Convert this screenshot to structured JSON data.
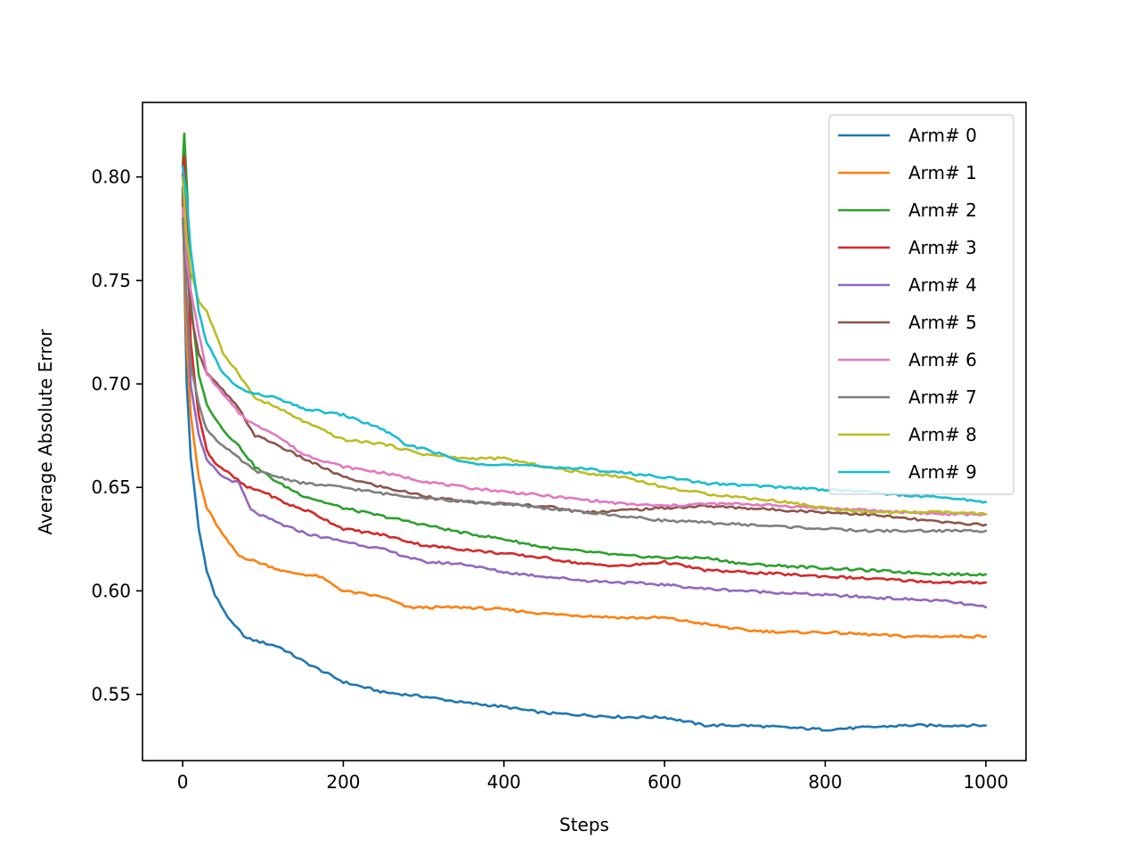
{
  "chart_data": {
    "type": "line",
    "title": "",
    "xlabel": "Steps",
    "ylabel": "Average Absolute Error",
    "xlim": [
      -50,
      1050
    ],
    "ylim": [
      0.518,
      0.836
    ],
    "xticks": [
      0,
      200,
      400,
      600,
      800,
      1000
    ],
    "yticks": [
      0.55,
      0.6,
      0.65,
      0.7,
      0.75,
      0.8
    ],
    "grid": false,
    "legend_position": "top-right",
    "series": [
      {
        "name": "Arm# 0",
        "color": "#1f77b4",
        "points": [
          [
            0,
            0.795
          ],
          [
            5,
            0.7
          ],
          [
            10,
            0.665
          ],
          [
            20,
            0.63
          ],
          [
            30,
            0.61
          ],
          [
            40,
            0.598
          ],
          [
            60,
            0.585
          ],
          [
            80,
            0.577
          ],
          [
            100,
            0.575
          ],
          [
            120,
            0.573
          ],
          [
            150,
            0.566
          ],
          [
            200,
            0.556
          ],
          [
            250,
            0.551
          ],
          [
            300,
            0.549
          ],
          [
            350,
            0.546
          ],
          [
            400,
            0.544
          ],
          [
            450,
            0.541
          ],
          [
            500,
            0.54
          ],
          [
            550,
            0.539
          ],
          [
            600,
            0.539
          ],
          [
            650,
            0.535
          ],
          [
            700,
            0.535
          ],
          [
            750,
            0.534
          ],
          [
            800,
            0.533
          ],
          [
            850,
            0.534
          ],
          [
            900,
            0.535
          ],
          [
            950,
            0.535
          ],
          [
            1000,
            0.535
          ]
        ]
      },
      {
        "name": "Arm# 1",
        "color": "#ff7f0e",
        "points": [
          [
            0,
            0.788
          ],
          [
            5,
            0.72
          ],
          [
            10,
            0.685
          ],
          [
            20,
            0.655
          ],
          [
            30,
            0.64
          ],
          [
            50,
            0.627
          ],
          [
            70,
            0.617
          ],
          [
            100,
            0.613
          ],
          [
            130,
            0.609
          ],
          [
            170,
            0.607
          ],
          [
            200,
            0.6
          ],
          [
            250,
            0.597
          ],
          [
            280,
            0.592
          ],
          [
            350,
            0.592
          ],
          [
            400,
            0.591
          ],
          [
            450,
            0.589
          ],
          [
            500,
            0.588
          ],
          [
            550,
            0.587
          ],
          [
            600,
            0.587
          ],
          [
            650,
            0.584
          ],
          [
            700,
            0.581
          ],
          [
            750,
            0.58
          ],
          [
            800,
            0.58
          ],
          [
            850,
            0.579
          ],
          [
            900,
            0.578
          ],
          [
            950,
            0.578
          ],
          [
            1000,
            0.578
          ]
        ]
      },
      {
        "name": "Arm# 2",
        "color": "#2ca02c",
        "points": [
          [
            0,
            0.805
          ],
          [
            2,
            0.821
          ],
          [
            6,
            0.79
          ],
          [
            10,
            0.74
          ],
          [
            20,
            0.705
          ],
          [
            30,
            0.69
          ],
          [
            50,
            0.678
          ],
          [
            70,
            0.67
          ],
          [
            90,
            0.66
          ],
          [
            120,
            0.652
          ],
          [
            150,
            0.646
          ],
          [
            200,
            0.64
          ],
          [
            250,
            0.636
          ],
          [
            300,
            0.632
          ],
          [
            350,
            0.628
          ],
          [
            400,
            0.625
          ],
          [
            450,
            0.621
          ],
          [
            500,
            0.619
          ],
          [
            550,
            0.617
          ],
          [
            600,
            0.616
          ],
          [
            650,
            0.616
          ],
          [
            700,
            0.613
          ],
          [
            750,
            0.612
          ],
          [
            800,
            0.611
          ],
          [
            850,
            0.61
          ],
          [
            900,
            0.609
          ],
          [
            950,
            0.608
          ],
          [
            1000,
            0.608
          ]
        ]
      },
      {
        "name": "Arm# 3",
        "color": "#d62728",
        "points": [
          [
            0,
            0.8
          ],
          [
            2,
            0.81
          ],
          [
            6,
            0.77
          ],
          [
            10,
            0.72
          ],
          [
            20,
            0.685
          ],
          [
            30,
            0.668
          ],
          [
            40,
            0.662
          ],
          [
            60,
            0.656
          ],
          [
            80,
            0.65
          ],
          [
            100,
            0.648
          ],
          [
            130,
            0.642
          ],
          [
            160,
            0.638
          ],
          [
            200,
            0.63
          ],
          [
            250,
            0.627
          ],
          [
            300,
            0.622
          ],
          [
            350,
            0.62
          ],
          [
            400,
            0.618
          ],
          [
            450,
            0.616
          ],
          [
            500,
            0.613
          ],
          [
            550,
            0.612
          ],
          [
            600,
            0.614
          ],
          [
            650,
            0.61
          ],
          [
            700,
            0.609
          ],
          [
            750,
            0.608
          ],
          [
            800,
            0.607
          ],
          [
            850,
            0.606
          ],
          [
            900,
            0.605
          ],
          [
            950,
            0.604
          ],
          [
            1000,
            0.604
          ]
        ]
      },
      {
        "name": "Arm# 4",
        "color": "#9467bd",
        "points": [
          [
            0,
            0.79
          ],
          [
            5,
            0.74
          ],
          [
            10,
            0.7
          ],
          [
            20,
            0.675
          ],
          [
            30,
            0.663
          ],
          [
            50,
            0.655
          ],
          [
            70,
            0.652
          ],
          [
            85,
            0.639
          ],
          [
            100,
            0.636
          ],
          [
            130,
            0.631
          ],
          [
            160,
            0.627
          ],
          [
            200,
            0.624
          ],
          [
            250,
            0.62
          ],
          [
            300,
            0.614
          ],
          [
            350,
            0.613
          ],
          [
            400,
            0.609
          ],
          [
            450,
            0.607
          ],
          [
            500,
            0.605
          ],
          [
            550,
            0.604
          ],
          [
            600,
            0.603
          ],
          [
            650,
            0.601
          ],
          [
            700,
            0.6
          ],
          [
            750,
            0.599
          ],
          [
            800,
            0.598
          ],
          [
            850,
            0.597
          ],
          [
            900,
            0.596
          ],
          [
            950,
            0.595
          ],
          [
            1000,
            0.592
          ]
        ]
      },
      {
        "name": "Arm# 5",
        "color": "#8c564b",
        "points": [
          [
            0,
            0.79
          ],
          [
            5,
            0.76
          ],
          [
            10,
            0.735
          ],
          [
            20,
            0.715
          ],
          [
            30,
            0.705
          ],
          [
            50,
            0.697
          ],
          [
            70,
            0.688
          ],
          [
            90,
            0.675
          ],
          [
            110,
            0.672
          ],
          [
            150,
            0.664
          ],
          [
            200,
            0.655
          ],
          [
            250,
            0.65
          ],
          [
            300,
            0.646
          ],
          [
            350,
            0.643
          ],
          [
            400,
            0.642
          ],
          [
            450,
            0.641
          ],
          [
            500,
            0.638
          ],
          [
            550,
            0.639
          ],
          [
            600,
            0.64
          ],
          [
            650,
            0.641
          ],
          [
            700,
            0.64
          ],
          [
            750,
            0.639
          ],
          [
            800,
            0.638
          ],
          [
            850,
            0.637
          ],
          [
            900,
            0.635
          ],
          [
            950,
            0.633
          ],
          [
            1000,
            0.632
          ]
        ]
      },
      {
        "name": "Arm# 6",
        "color": "#e377c2",
        "points": [
          [
            0,
            0.785
          ],
          [
            5,
            0.76
          ],
          [
            10,
            0.745
          ],
          [
            20,
            0.725
          ],
          [
            30,
            0.705
          ],
          [
            50,
            0.695
          ],
          [
            70,
            0.686
          ],
          [
            90,
            0.68
          ],
          [
            110,
            0.677
          ],
          [
            150,
            0.666
          ],
          [
            200,
            0.66
          ],
          [
            250,
            0.657
          ],
          [
            300,
            0.653
          ],
          [
            350,
            0.65
          ],
          [
            400,
            0.648
          ],
          [
            450,
            0.646
          ],
          [
            500,
            0.644
          ],
          [
            550,
            0.642
          ],
          [
            600,
            0.641
          ],
          [
            650,
            0.642
          ],
          [
            700,
            0.642
          ],
          [
            750,
            0.641
          ],
          [
            800,
            0.64
          ],
          [
            850,
            0.639
          ],
          [
            900,
            0.638
          ],
          [
            950,
            0.637
          ],
          [
            1000,
            0.637
          ]
        ]
      },
      {
        "name": "Arm# 7",
        "color": "#7f7f7f",
        "points": [
          [
            0,
            0.78
          ],
          [
            5,
            0.74
          ],
          [
            10,
            0.71
          ],
          [
            20,
            0.69
          ],
          [
            30,
            0.678
          ],
          [
            50,
            0.67
          ],
          [
            70,
            0.664
          ],
          [
            90,
            0.658
          ],
          [
            120,
            0.655
          ],
          [
            150,
            0.652
          ],
          [
            200,
            0.65
          ],
          [
            250,
            0.647
          ],
          [
            300,
            0.645
          ],
          [
            350,
            0.643
          ],
          [
            400,
            0.642
          ],
          [
            450,
            0.64
          ],
          [
            500,
            0.638
          ],
          [
            550,
            0.636
          ],
          [
            600,
            0.634
          ],
          [
            650,
            0.633
          ],
          [
            700,
            0.632
          ],
          [
            750,
            0.631
          ],
          [
            800,
            0.63
          ],
          [
            850,
            0.629
          ],
          [
            900,
            0.629
          ],
          [
            950,
            0.629
          ],
          [
            1000,
            0.629
          ]
        ]
      },
      {
        "name": "Arm# 8",
        "color": "#bcbd22",
        "points": [
          [
            0,
            0.8
          ],
          [
            5,
            0.77
          ],
          [
            10,
            0.755
          ],
          [
            20,
            0.74
          ],
          [
            30,
            0.735
          ],
          [
            50,
            0.715
          ],
          [
            70,
            0.705
          ],
          [
            90,
            0.693
          ],
          [
            110,
            0.69
          ],
          [
            150,
            0.682
          ],
          [
            200,
            0.673
          ],
          [
            250,
            0.671
          ],
          [
            300,
            0.666
          ],
          [
            350,
            0.664
          ],
          [
            400,
            0.664
          ],
          [
            450,
            0.66
          ],
          [
            500,
            0.657
          ],
          [
            550,
            0.655
          ],
          [
            600,
            0.65
          ],
          [
            650,
            0.647
          ],
          [
            700,
            0.645
          ],
          [
            750,
            0.643
          ],
          [
            800,
            0.64
          ],
          [
            850,
            0.638
          ],
          [
            900,
            0.638
          ],
          [
            950,
            0.638
          ],
          [
            1000,
            0.637
          ]
        ]
      },
      {
        "name": "Arm# 9",
        "color": "#17becf",
        "points": [
          [
            0,
            0.805
          ],
          [
            5,
            0.79
          ],
          [
            10,
            0.765
          ],
          [
            20,
            0.735
          ],
          [
            30,
            0.72
          ],
          [
            50,
            0.705
          ],
          [
            70,
            0.698
          ],
          [
            90,
            0.695
          ],
          [
            110,
            0.694
          ],
          [
            150,
            0.688
          ],
          [
            200,
            0.685
          ],
          [
            250,
            0.678
          ],
          [
            280,
            0.67
          ],
          [
            300,
            0.669
          ],
          [
            350,
            0.662
          ],
          [
            400,
            0.661
          ],
          [
            450,
            0.66
          ],
          [
            500,
            0.659
          ],
          [
            550,
            0.657
          ],
          [
            600,
            0.655
          ],
          [
            650,
            0.652
          ],
          [
            700,
            0.651
          ],
          [
            750,
            0.65
          ],
          [
            800,
            0.649
          ],
          [
            850,
            0.648
          ],
          [
            900,
            0.646
          ],
          [
            950,
            0.645
          ],
          [
            1000,
            0.643
          ]
        ]
      }
    ]
  }
}
